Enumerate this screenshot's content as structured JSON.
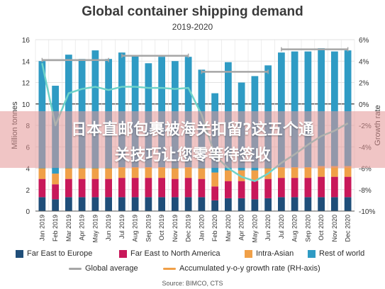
{
  "chart_data": {
    "type": "bar",
    "title": "Global container shipping demand",
    "subtitle": "2019-2020",
    "ylabel": "Million tonnes",
    "y2label": "Growth rate",
    "ylim": [
      0,
      16
    ],
    "y2lim": [
      -10,
      6
    ],
    "yticks": [
      "0",
      "2",
      "4",
      "6",
      "8",
      "10",
      "12",
      "14",
      "16"
    ],
    "y2ticks": [
      "-10%",
      "-8%",
      "-6%",
      "-4%",
      "-2%",
      "0%",
      "2%",
      "4%",
      "6%"
    ],
    "categories": [
      "Jan 2019",
      "Feb 2019",
      "Mar 2019",
      "Apr 2019",
      "May 2019",
      "Jun 2019",
      "Jul 2019",
      "Aug 2019",
      "Sep 2019",
      "Oct 2019",
      "Nov 2019",
      "Dec 2019",
      "Jan 2020",
      "Feb 2020",
      "Mar 2020",
      "Apr 2020",
      "May 2020",
      "Jun 2020",
      "Jul 2020",
      "Aug 2020",
      "Sep 2020",
      "Oct 2020",
      "Nov 2020",
      "Dec 2020"
    ],
    "series": [
      {
        "name": "Far East to Europe",
        "color": "#1f4e79",
        "values": [
          1.3,
          1.1,
          1.3,
          1.3,
          1.3,
          1.3,
          1.3,
          1.3,
          1.3,
          1.3,
          1.3,
          1.3,
          1.3,
          1.0,
          1.2,
          1.2,
          1.1,
          1.2,
          1.3,
          1.3,
          1.3,
          1.3,
          1.3,
          1.3
        ]
      },
      {
        "name": "Far East to North America",
        "color": "#c8185a",
        "values": [
          1.7,
          1.4,
          1.7,
          1.7,
          1.7,
          1.7,
          1.8,
          1.8,
          1.8,
          1.8,
          1.7,
          1.8,
          1.7,
          1.3,
          1.6,
          1.6,
          1.7,
          1.8,
          1.8,
          1.8,
          1.8,
          1.9,
          1.9,
          1.9
        ]
      },
      {
        "name": "Intra-Asian",
        "color": "#f0a048",
        "values": [
          1.0,
          1.0,
          1.0,
          1.0,
          1.0,
          1.0,
          1.0,
          1.0,
          1.0,
          1.0,
          1.0,
          1.0,
          1.0,
          1.3,
          1.0,
          1.0,
          1.0,
          1.0,
          1.0,
          1.0,
          1.0,
          1.0,
          1.0,
          1.0
        ]
      },
      {
        "name": "Rest of world",
        "color": "#2f9bc4",
        "values": [
          10.0,
          8.2,
          10.6,
          10.2,
          11.0,
          10.2,
          10.7,
          10.4,
          9.7,
          10.3,
          10.0,
          10.3,
          9.2,
          7.4,
          10.1,
          8.2,
          8.8,
          9.6,
          10.7,
          10.8,
          10.8,
          11.0,
          10.7,
          10.8
        ]
      }
    ],
    "global_average": {
      "name": "Global average",
      "color": "#a6a6a6",
      "segments": [
        {
          "from": 0,
          "to": 5,
          "value": 14.1
        },
        {
          "from": 6,
          "to": 11,
          "value": 14.5
        },
        {
          "from": 12,
          "to": 17,
          "value": 13.0
        },
        {
          "from": 18,
          "to": 23,
          "value": 15.1
        }
      ]
    },
    "growth_rate": {
      "name": "Accumulated y-o-y growth rate (RH-axis)",
      "color": "#6fd3c9",
      "values": [
        3.8,
        -2.0,
        1.0,
        1.4,
        1.6,
        1.3,
        1.6,
        1.6,
        1.5,
        1.5,
        1.4,
        1.5,
        -1.0,
        -4.8,
        -6.0,
        -6.8,
        -7.2,
        -6.5,
        -5.5,
        -4.7,
        -3.8,
        -3.0,
        -2.5,
        -1.8
      ]
    },
    "grid": true,
    "legend_position": "bottom"
  },
  "banner": {
    "line1": "日本直邮包裹被海关扣留?这五个通",
    "line2": "关技巧让您零等待签收"
  },
  "legend": {
    "items": [
      "Far East to Europe",
      "Far East to North America",
      "Intra-Asian",
      "Rest of world",
      "Global average",
      "Accumulated y-o-y growth rate (RH-axis)"
    ]
  },
  "source": "Source: BIMCO, CTS"
}
